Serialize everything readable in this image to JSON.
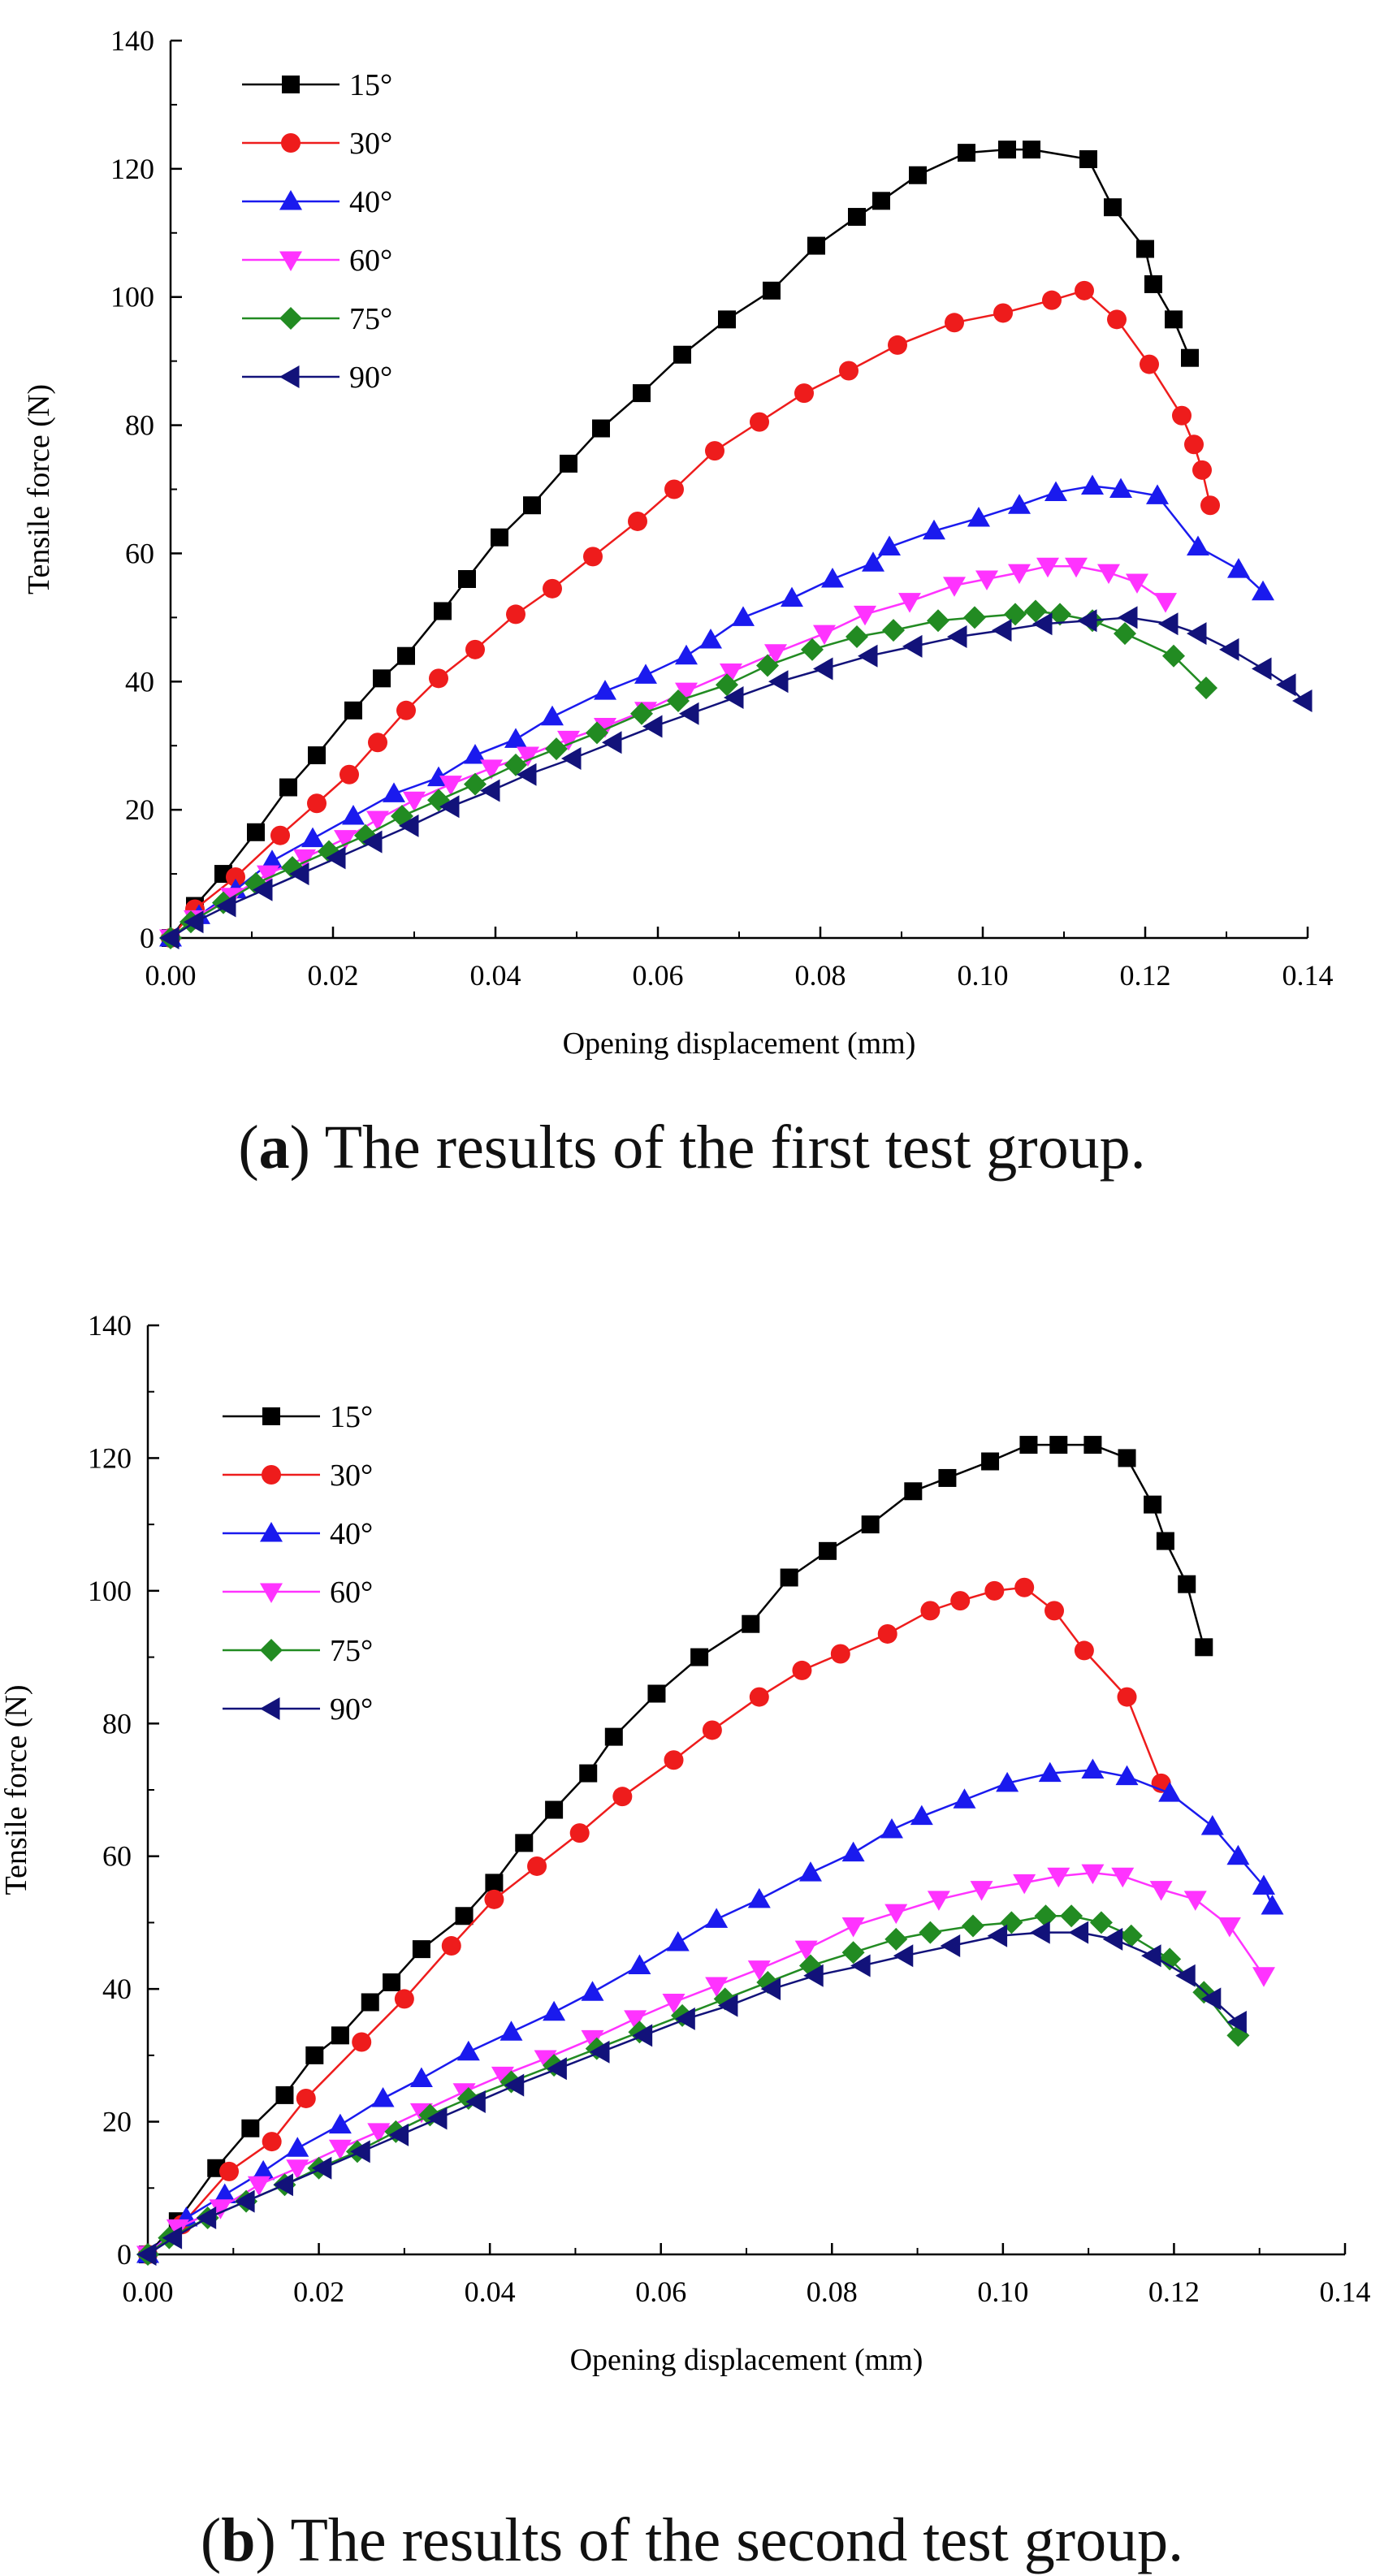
{
  "chart_data": [
    {
      "type": "line",
      "panel_label": "a",
      "caption_text": "The results of the first test group.",
      "xlabel": "Opening displacement (mm)",
      "ylabel": "Tensile force (N)",
      "xlim": [
        0,
        0.14
      ],
      "ylim": [
        0,
        140
      ],
      "xticks": [
        0.0,
        0.02,
        0.04,
        0.06,
        0.08,
        0.1,
        0.12,
        0.14
      ],
      "xtick_labels": [
        "0.00",
        "0.02",
        "0.04",
        "0.06",
        "0.08",
        "0.10",
        "0.12",
        "0.14"
      ],
      "yticks": [
        0,
        20,
        40,
        60,
        80,
        100,
        120,
        140
      ],
      "ytick_labels": [
        "0",
        "20",
        "40",
        "60",
        "80",
        "100",
        "120",
        "140"
      ],
      "legend_position": "top-left",
      "series": [
        {
          "name": "15°",
          "color": "#000000",
          "marker": "square",
          "x": [
            0,
            0.003,
            0.0065,
            0.0105,
            0.0145,
            0.018,
            0.0225,
            0.026,
            0.029,
            0.0335,
            0.0365,
            0.0405,
            0.0445,
            0.049,
            0.053,
            0.058,
            0.063,
            0.0685,
            0.074,
            0.0795,
            0.0845,
            0.0875,
            0.092,
            0.098,
            0.103,
            0.106,
            0.113,
            0.116,
            0.12,
            0.121,
            0.1235,
            0.1255
          ],
          "y": [
            0,
            5,
            10,
            16.5,
            23.5,
            28.5,
            35.5,
            40.5,
            44,
            51,
            56,
            62.5,
            67.5,
            74,
            79.5,
            85,
            91,
            96.5,
            101,
            108,
            112.5,
            115,
            119,
            122.5,
            123,
            123,
            121.5,
            114,
            107.5,
            102,
            96.5,
            90.5
          ]
        },
        {
          "name": "30°",
          "color": "#ee1c1c",
          "marker": "circle",
          "x": [
            0,
            0.003,
            0.008,
            0.0135,
            0.018,
            0.022,
            0.0255,
            0.029,
            0.033,
            0.0375,
            0.0425,
            0.047,
            0.052,
            0.0575,
            0.062,
            0.067,
            0.0725,
            0.078,
            0.0835,
            0.0895,
            0.0965,
            0.1025,
            0.1085,
            0.1125,
            0.1165,
            0.1205,
            0.1245,
            0.126,
            0.127,
            0.128
          ],
          "y": [
            0,
            4.5,
            9.5,
            16,
            21,
            25.5,
            30.5,
            35.5,
            40.5,
            45,
            50.5,
            54.5,
            59.5,
            65,
            70,
            76,
            80.5,
            85,
            88.5,
            92.5,
            96,
            97.5,
            99.5,
            101,
            96.5,
            89.5,
            81.5,
            77,
            73,
            67.5
          ]
        },
        {
          "name": "40°",
          "color": "#1a1aee",
          "marker": "triangle-up",
          "x": [
            0,
            0.0035,
            0.008,
            0.0125,
            0.0175,
            0.0225,
            0.0275,
            0.033,
            0.0375,
            0.0425,
            0.047,
            0.0535,
            0.0585,
            0.0635,
            0.0665,
            0.0705,
            0.0765,
            0.0815,
            0.0865,
            0.0885,
            0.094,
            0.0995,
            0.1045,
            0.109,
            0.1135,
            0.117,
            0.1215,
            0.1265,
            0.1315,
            0.1345
          ],
          "y": [
            0,
            3.5,
            7.5,
            12,
            15.5,
            19,
            22.5,
            25,
            28.5,
            31,
            34.5,
            38.5,
            41,
            44,
            46.5,
            50,
            53,
            56,
            58.5,
            61,
            63.5,
            65.5,
            67.5,
            69.5,
            70.5,
            70,
            69,
            61,
            57.5,
            54
          ]
        },
        {
          "name": "60°",
          "color": "#ff33ff",
          "marker": "triangle-down",
          "x": [
            0,
            0.003,
            0.0075,
            0.012,
            0.0165,
            0.0215,
            0.0255,
            0.03,
            0.0345,
            0.0395,
            0.044,
            0.049,
            0.0535,
            0.0585,
            0.0635,
            0.069,
            0.0745,
            0.0805,
            0.0855,
            0.091,
            0.0965,
            0.1005,
            0.1045,
            0.108,
            0.1115,
            0.1155,
            0.119,
            0.1225
          ],
          "y": [
            0,
            3,
            6.5,
            10,
            12.5,
            15.5,
            18.5,
            21.5,
            24,
            26.5,
            28.5,
            31,
            33,
            35.5,
            38.5,
            41.5,
            44.5,
            47.5,
            50.5,
            52.5,
            55,
            56,
            57,
            58,
            58,
            57,
            55.5,
            52.5
          ]
        },
        {
          "name": "75°",
          "color": "#228b22",
          "marker": "diamond",
          "x": [
            0,
            0.0025,
            0.0065,
            0.0105,
            0.015,
            0.0195,
            0.024,
            0.0285,
            0.033,
            0.0375,
            0.0425,
            0.0475,
            0.0525,
            0.058,
            0.0625,
            0.0685,
            0.0735,
            0.079,
            0.0845,
            0.089,
            0.0945,
            0.099,
            0.104,
            0.1065,
            0.1095,
            0.1135,
            0.1175,
            0.1235,
            0.1275
          ],
          "y": [
            0,
            2.5,
            5.5,
            8.5,
            11,
            13.5,
            16,
            19,
            21.5,
            24,
            27,
            29.5,
            32,
            35,
            37,
            39.5,
            42.5,
            45,
            47,
            48,
            49.5,
            50,
            50.5,
            51,
            50.5,
            49.5,
            47.5,
            44,
            39
          ]
        },
        {
          "name": "90°",
          "color": "#12127a",
          "marker": "triangle-left",
          "x": [
            0,
            0.003,
            0.007,
            0.0115,
            0.016,
            0.0205,
            0.025,
            0.0295,
            0.0345,
            0.0395,
            0.044,
            0.0495,
            0.0545,
            0.0595,
            0.064,
            0.0695,
            0.075,
            0.0805,
            0.086,
            0.0915,
            0.097,
            0.1025,
            0.1075,
            0.113,
            0.118,
            0.123,
            0.1265,
            0.1305,
            0.1345,
            0.1375,
            0.1395
          ],
          "y": [
            0,
            2.5,
            5,
            7.5,
            10,
            12.5,
            15,
            17.5,
            20.5,
            23,
            25.5,
            28,
            30.5,
            33,
            35,
            37.5,
            40,
            42,
            44,
            45.5,
            47,
            48,
            49,
            49.5,
            50,
            49,
            47.5,
            45,
            42,
            39.5,
            37
          ]
        }
      ]
    },
    {
      "type": "line",
      "panel_label": "b",
      "caption_text": "The results of the second test group.",
      "xlabel": "Opening displacement (mm)",
      "ylabel": "Tensile force (N)",
      "xlim": [
        0,
        0.14
      ],
      "ylim": [
        0,
        140
      ],
      "xticks": [
        0.0,
        0.02,
        0.04,
        0.06,
        0.08,
        0.1,
        0.12,
        0.14
      ],
      "xtick_labels": [
        "0.00",
        "0.02",
        "0.04",
        "0.06",
        "0.08",
        "0.10",
        "0.12",
        "0.14"
      ],
      "yticks": [
        0,
        20,
        40,
        60,
        80,
        100,
        120,
        140
      ],
      "ytick_labels": [
        "0",
        "20",
        "40",
        "60",
        "80",
        "100",
        "120",
        "140"
      ],
      "legend_position": "top-left",
      "series": [
        {
          "name": "15°",
          "color": "#000000",
          "marker": "square",
          "x": [
            0,
            0.0035,
            0.008,
            0.012,
            0.016,
            0.0195,
            0.0225,
            0.026,
            0.0285,
            0.032,
            0.037,
            0.0405,
            0.044,
            0.0475,
            0.0515,
            0.0545,
            0.0595,
            0.0645,
            0.0705,
            0.075,
            0.0795,
            0.0845,
            0.0895,
            0.0935,
            0.0985,
            0.103,
            0.1065,
            0.1105,
            0.1145,
            0.1175,
            0.119,
            0.1215,
            0.1235
          ],
          "y": [
            0,
            5,
            13,
            19,
            24,
            30,
            33,
            38,
            41,
            46,
            51,
            56,
            62,
            67,
            72.5,
            78,
            84.5,
            90,
            95,
            102,
            106,
            110,
            115,
            117,
            119.5,
            122,
            122,
            122,
            120,
            113,
            107.5,
            101,
            91.5
          ]
        },
        {
          "name": "30°",
          "color": "#ee1c1c",
          "marker": "circle",
          "x": [
            0,
            0.004,
            0.0095,
            0.0145,
            0.0185,
            0.025,
            0.03,
            0.0355,
            0.0405,
            0.0455,
            0.0505,
            0.0555,
            0.0615,
            0.066,
            0.0715,
            0.0765,
            0.081,
            0.0865,
            0.0915,
            0.095,
            0.099,
            0.1025,
            0.106,
            0.1095,
            0.1145,
            0.1185
          ],
          "y": [
            0,
            4.5,
            12.5,
            17,
            23.5,
            32,
            38.5,
            46.5,
            53.5,
            58.5,
            63.5,
            69,
            74.5,
            79,
            84,
            88,
            90.5,
            93.5,
            97,
            98.5,
            100,
            100.5,
            97,
            91,
            84,
            71
          ]
        },
        {
          "name": "40°",
          "color": "#1a1aee",
          "marker": "triangle-up",
          "x": [
            0,
            0.0045,
            0.009,
            0.0135,
            0.0175,
            0.0225,
            0.0275,
            0.032,
            0.0375,
            0.0425,
            0.0475,
            0.052,
            0.0575,
            0.062,
            0.0665,
            0.0715,
            0.0775,
            0.0825,
            0.087,
            0.0905,
            0.0955,
            0.1005,
            0.1055,
            0.1105,
            0.1145,
            0.1195,
            0.1245,
            0.1275,
            0.1305,
            0.1315
          ],
          "y": [
            0,
            5.5,
            9,
            12.5,
            16,
            19.5,
            23.5,
            26.5,
            30.5,
            33.5,
            36.5,
            39.5,
            43.5,
            47,
            50.5,
            53.5,
            57.5,
            60.5,
            64,
            66,
            68.5,
            71,
            72.5,
            73,
            72,
            69.5,
            64.5,
            60,
            55.5,
            52.5
          ]
        },
        {
          "name": "60°",
          "color": "#ff33ff",
          "marker": "triangle-down",
          "x": [
            0,
            0.0035,
            0.0085,
            0.013,
            0.0175,
            0.0225,
            0.027,
            0.032,
            0.037,
            0.0415,
            0.0465,
            0.052,
            0.057,
            0.0615,
            0.0665,
            0.0715,
            0.077,
            0.0825,
            0.0875,
            0.0925,
            0.0975,
            0.1025,
            0.1065,
            0.1105,
            0.114,
            0.1185,
            0.1225,
            0.1265,
            0.1305
          ],
          "y": [
            0,
            4,
            7,
            10.5,
            13,
            16,
            18.5,
            21.5,
            24.5,
            27,
            29.5,
            32.5,
            35.5,
            38,
            40.5,
            43,
            46,
            49.5,
            51.5,
            53.5,
            55,
            56,
            57,
            57.5,
            57,
            55,
            53.5,
            49.5,
            42
          ]
        },
        {
          "name": "75°",
          "color": "#228b22",
          "marker": "diamond",
          "x": [
            0,
            0.0025,
            0.007,
            0.0115,
            0.016,
            0.02,
            0.0245,
            0.029,
            0.033,
            0.0375,
            0.0425,
            0.0475,
            0.0525,
            0.0575,
            0.0625,
            0.0675,
            0.0725,
            0.0775,
            0.0825,
            0.0875,
            0.0915,
            0.0965,
            0.101,
            0.105,
            0.108,
            0.1115,
            0.115,
            0.1195,
            0.1235,
            0.1275
          ],
          "y": [
            0,
            2.5,
            5.5,
            8,
            10.5,
            13,
            15.5,
            18.5,
            21,
            23.5,
            26,
            28.5,
            31,
            33.5,
            36,
            38.5,
            41,
            43.5,
            45.5,
            47.5,
            48.5,
            49.5,
            50,
            51,
            51,
            50,
            48,
            44.5,
            39.5,
            33
          ]
        },
        {
          "name": "90°",
          "color": "#12127a",
          "marker": "triangle-left",
          "x": [
            0,
            0.003,
            0.007,
            0.0115,
            0.016,
            0.0205,
            0.025,
            0.0295,
            0.034,
            0.0385,
            0.043,
            0.048,
            0.053,
            0.058,
            0.063,
            0.068,
            0.073,
            0.078,
            0.0835,
            0.0885,
            0.094,
            0.0995,
            0.1045,
            0.109,
            0.113,
            0.1175,
            0.1215,
            0.1245,
            0.1275
          ],
          "y": [
            0,
            2.5,
            5.5,
            8,
            10.5,
            13,
            15.5,
            18,
            20.5,
            23,
            25.5,
            28,
            30.5,
            33,
            35.5,
            37.5,
            40,
            42,
            43.5,
            45,
            46.5,
            48,
            48.5,
            48.5,
            47.5,
            45,
            42,
            38.5,
            35
          ]
        }
      ]
    }
  ]
}
